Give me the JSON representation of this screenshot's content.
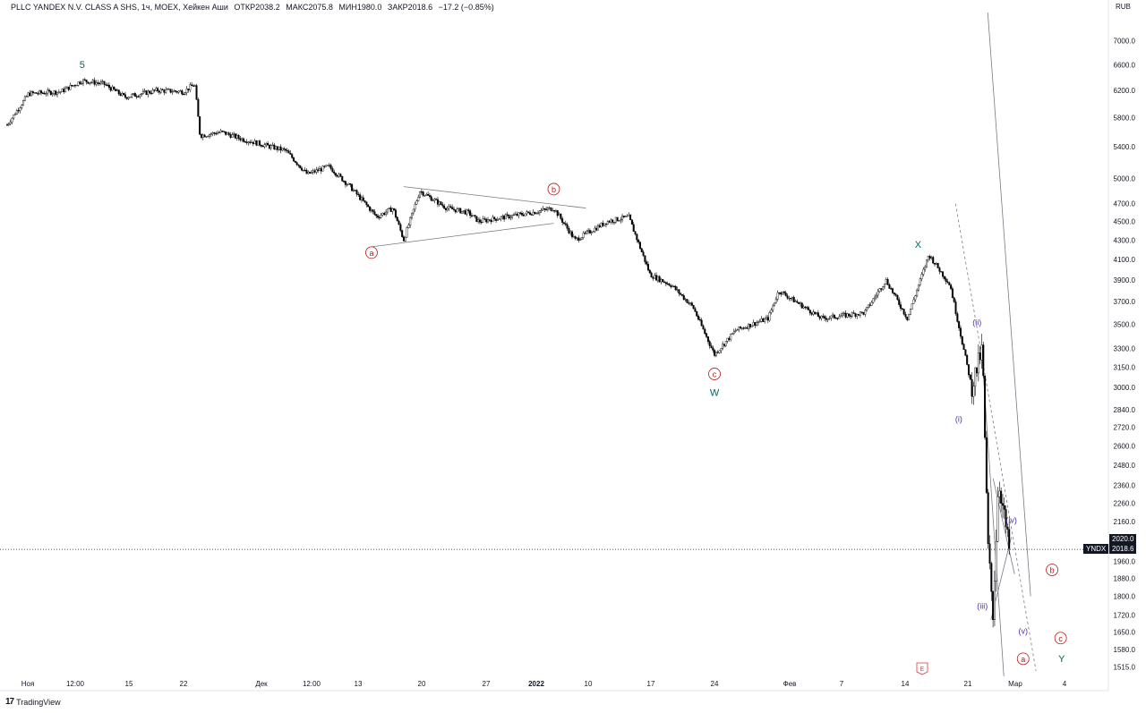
{
  "header": {
    "symbol": "PLLC YANDEX N.V. CLASS A SHS, 1ч, MOEX, Хейкен Аши",
    "open": "ОТКР2038.2",
    "high": "МАКС2075.8",
    "low": "МИН1980.0",
    "close": "ЗАКР2018.6",
    "change": "−17.2 (−0.85%)"
  },
  "axis": {
    "unit": "RUB",
    "y_ticks": [
      7000.0,
      6600.0,
      6200.0,
      5800.0,
      5400.0,
      5000.0,
      4700.0,
      4500.0,
      4300.0,
      4100.0,
      3900.0,
      3700.0,
      3500.0,
      3300.0,
      3150.0,
      3000.0,
      2840.0,
      2720.0,
      2600.0,
      2480.0,
      2360.0,
      2260.0,
      2160.0,
      2060.0,
      1960.0,
      1880.0,
      1800.0,
      1720.0,
      1650.0,
      1580.0,
      1515.0
    ],
    "x_ticks": [
      "Ноя",
      "12:00",
      "15",
      "22",
      "Дек",
      "12:00",
      "13",
      "20",
      "27",
      "2022",
      "10",
      "17",
      "24",
      "Фев",
      "7",
      "14",
      "21",
      "Мар",
      "4"
    ]
  },
  "price_tags": {
    "symbol": "YNDX",
    "last": "2018.6",
    "prev": "2020.0"
  },
  "brand": {
    "name": "TradingView",
    "logo_icon": "tradingview-logo-icon"
  },
  "colors": {
    "candles": "#000000",
    "wave_primary": "#00695c",
    "wave_minor": "#b71c1c",
    "wave_minute": "#512da8",
    "trendline": "#787b86",
    "event_flag": "#e53935"
  },
  "chart_data": {
    "type": "candlestick",
    "title": "PLLC YANDEX N.V. CLASS A SHS",
    "ylabel": "RUB",
    "scale": "log",
    "ylim": [
      1480,
      7500
    ],
    "x_range": [
      "Ноя",
      "Мар"
    ],
    "grid": false,
    "series": [
      {
        "name": "YNDX",
        "path": [
          [
            0,
            5700
          ],
          [
            0.02,
            6150
          ],
          [
            0.05,
            6180
          ],
          [
            0.07,
            6350
          ],
          [
            0.09,
            6300
          ],
          [
            0.11,
            6100
          ],
          [
            0.14,
            6200
          ],
          [
            0.165,
            6180
          ],
          [
            0.175,
            6300
          ],
          [
            0.18,
            5550
          ],
          [
            0.2,
            5600
          ],
          [
            0.22,
            5500
          ],
          [
            0.26,
            5350
          ],
          [
            0.28,
            5050
          ],
          [
            0.3,
            5150
          ],
          [
            0.32,
            4900
          ],
          [
            0.345,
            4550
          ],
          [
            0.36,
            4650
          ],
          [
            0.37,
            4300
          ],
          [
            0.385,
            4850
          ],
          [
            0.41,
            4650
          ],
          [
            0.43,
            4600
          ],
          [
            0.44,
            4500
          ],
          [
            0.49,
            4600
          ],
          [
            0.51,
            4650
          ],
          [
            0.53,
            4300
          ],
          [
            0.56,
            4500
          ],
          [
            0.58,
            4550
          ],
          [
            0.6,
            3950
          ],
          [
            0.62,
            3850
          ],
          [
            0.64,
            3650
          ],
          [
            0.66,
            3250
          ],
          [
            0.68,
            3450
          ],
          [
            0.71,
            3550
          ],
          [
            0.72,
            3800
          ],
          [
            0.76,
            3550
          ],
          [
            0.8,
            3600
          ],
          [
            0.82,
            3900
          ],
          [
            0.84,
            3550
          ],
          [
            0.86,
            4150
          ],
          [
            0.88,
            3850
          ],
          [
            0.9,
            3000
          ],
          [
            0.91,
            3300
          ],
          [
            0.915,
            2050
          ],
          [
            0.92,
            1720
          ],
          [
            0.925,
            2400
          ],
          [
            0.935,
            2020
          ]
        ]
      }
    ],
    "current_price": 2018.6,
    "wave_labels": [
      {
        "text": "5",
        "x": 0.07,
        "price": 6600,
        "degree": "primary"
      },
      {
        "text": "a",
        "x": 0.34,
        "price": 4170,
        "degree": "minor"
      },
      {
        "text": "b",
        "x": 0.51,
        "price": 4870,
        "degree": "minor"
      },
      {
        "text": "c",
        "x": 0.66,
        "price": 3100,
        "degree": "minor"
      },
      {
        "text": "W",
        "x": 0.66,
        "price": 2960,
        "degree": "primary"
      },
      {
        "text": "X",
        "x": 0.85,
        "price": 4250,
        "degree": "primary"
      },
      {
        "text": "(i)",
        "x": 0.888,
        "price": 2780,
        "degree": "minute"
      },
      {
        "text": "(ii)",
        "x": 0.905,
        "price": 3520,
        "degree": "minute"
      },
      {
        "text": "(iii)",
        "x": 0.91,
        "price": 1760,
        "degree": "minute"
      },
      {
        "text": "(iv)",
        "x": 0.937,
        "price": 2170,
        "degree": "minute"
      },
      {
        "text": "(v)",
        "x": 0.948,
        "price": 1655,
        "degree": "minute"
      },
      {
        "text": "a",
        "x": 0.948,
        "price": 1545,
        "degree": "minor"
      },
      {
        "text": "b",
        "x": 0.975,
        "price": 1920,
        "degree": "minor"
      },
      {
        "text": "c",
        "x": 0.983,
        "price": 1625,
        "degree": "minor"
      },
      {
        "text": "Y",
        "x": 0.984,
        "price": 1545,
        "degree": "primary"
      }
    ]
  }
}
